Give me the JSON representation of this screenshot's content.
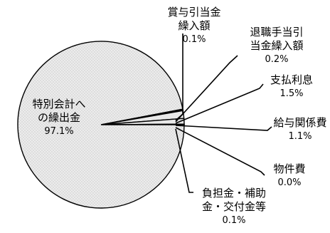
{
  "chart_data": {
    "type": "pie",
    "title": "",
    "legend": "none",
    "slices": [
      {
        "label_lines": [
          "特別会計へ",
          "の繰出金"
        ],
        "value": 97.1,
        "value_label": "97.1%"
      },
      {
        "label_lines": [
          "賞与引当金",
          "繰入額"
        ],
        "value": 0.1,
        "value_label": "0.1%"
      },
      {
        "label_lines": [
          "退職手当引",
          "当金繰入額"
        ],
        "value": 0.2,
        "value_label": "0.2%"
      },
      {
        "label_lines": [
          "支払利息"
        ],
        "value": 1.5,
        "value_label": "1.5%"
      },
      {
        "label_lines": [
          "給与関係費"
        ],
        "value": 1.1,
        "value_label": "1.1%"
      },
      {
        "label_lines": [
          "物件費"
        ],
        "value": 0.0,
        "value_label": "0.0%"
      },
      {
        "label_lines": [
          "負担金・補助",
          "金・交付金等"
        ],
        "value": 0.1,
        "value_label": "0.1%"
      }
    ],
    "colors": {
      "fill": "#e8e8e8",
      "stroke": "#000000"
    }
  }
}
